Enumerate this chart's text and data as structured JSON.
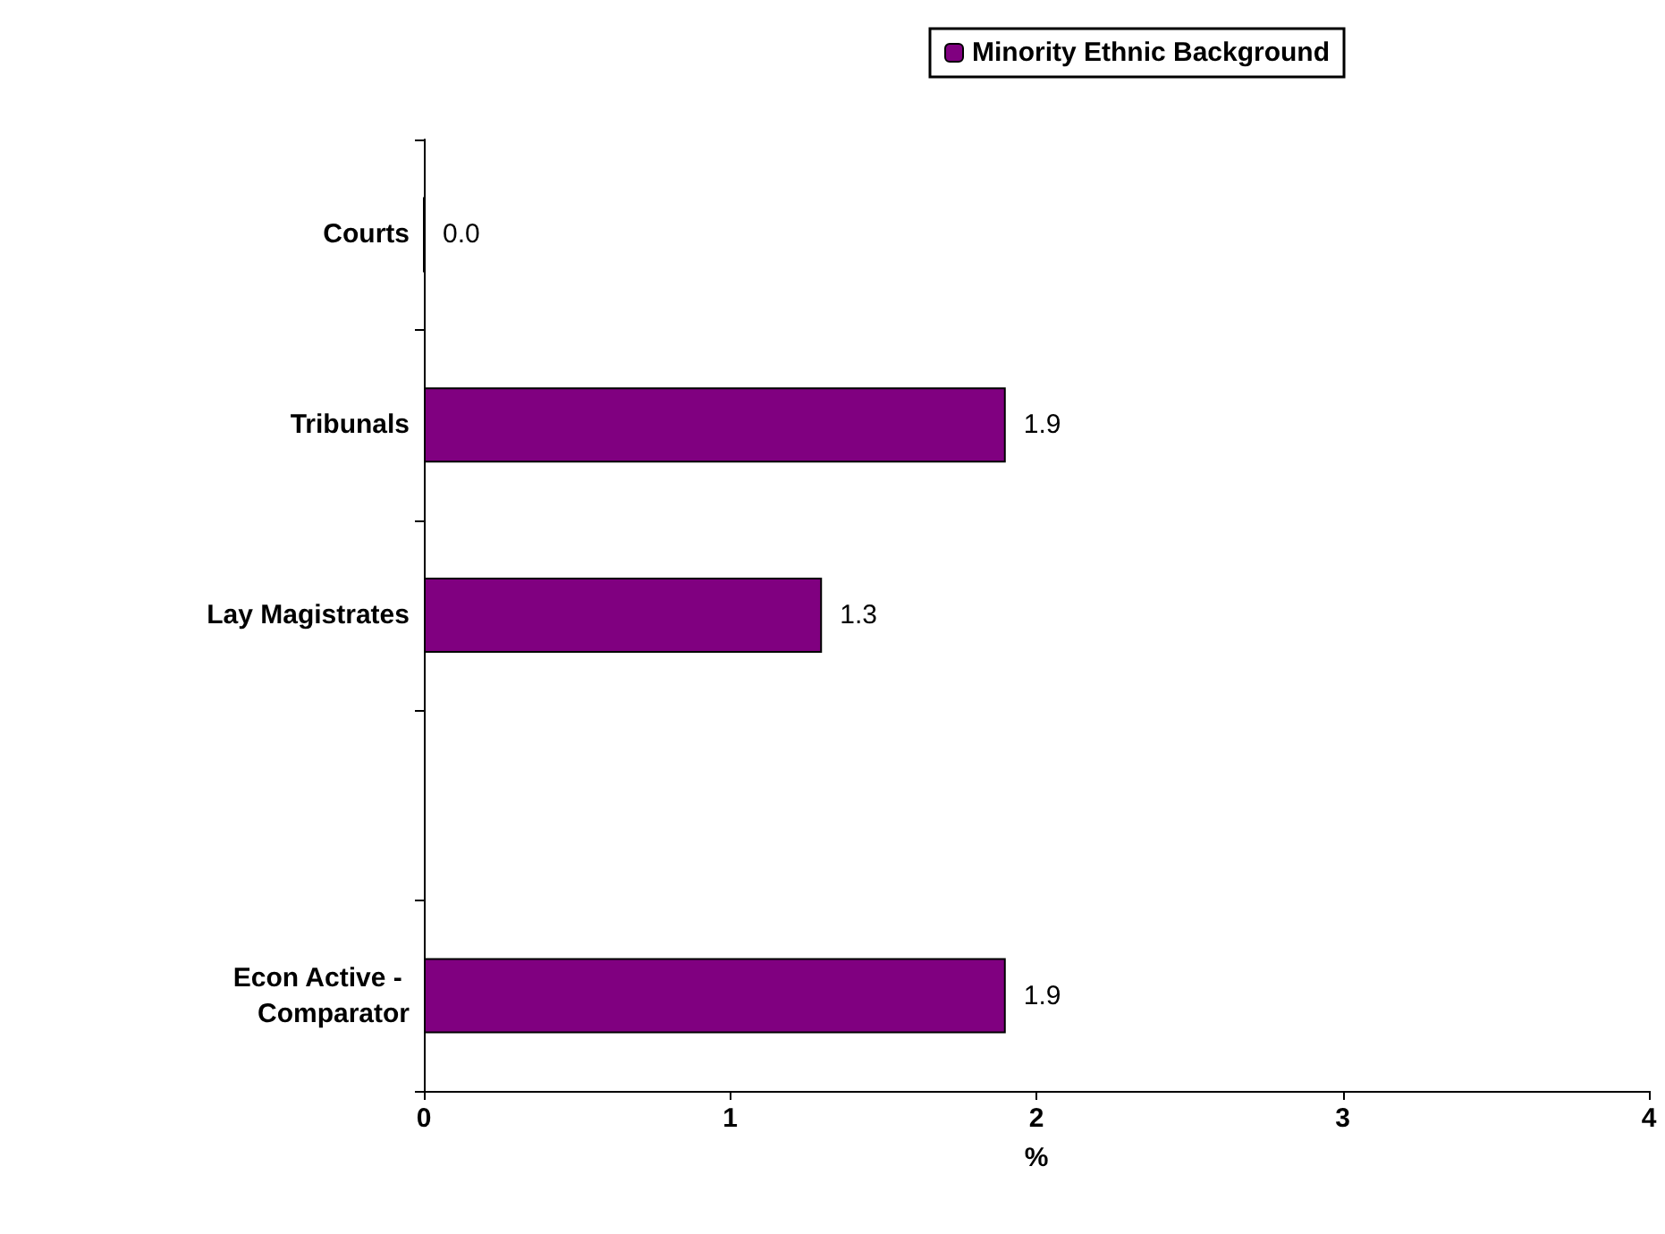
{
  "chart_data": {
    "type": "bar",
    "orientation": "horizontal",
    "xlabel": "%",
    "categories": [
      "Courts",
      "Tribunals",
      "Lay Magistrates",
      null,
      "Econ Active - Comparator"
    ],
    "series": [
      {
        "name": "Minority Ethnic Background",
        "color": "#800080",
        "values": [
          0,
          1.9,
          1.3,
          null,
          1.9
        ],
        "value_labels": [
          "0.0",
          "1.9",
          "1.3",
          null,
          "1.9"
        ]
      }
    ],
    "xlim": [
      0,
      4
    ],
    "xticks": [
      0,
      1,
      2,
      3,
      4
    ],
    "grid": false,
    "legend": "top"
  }
}
